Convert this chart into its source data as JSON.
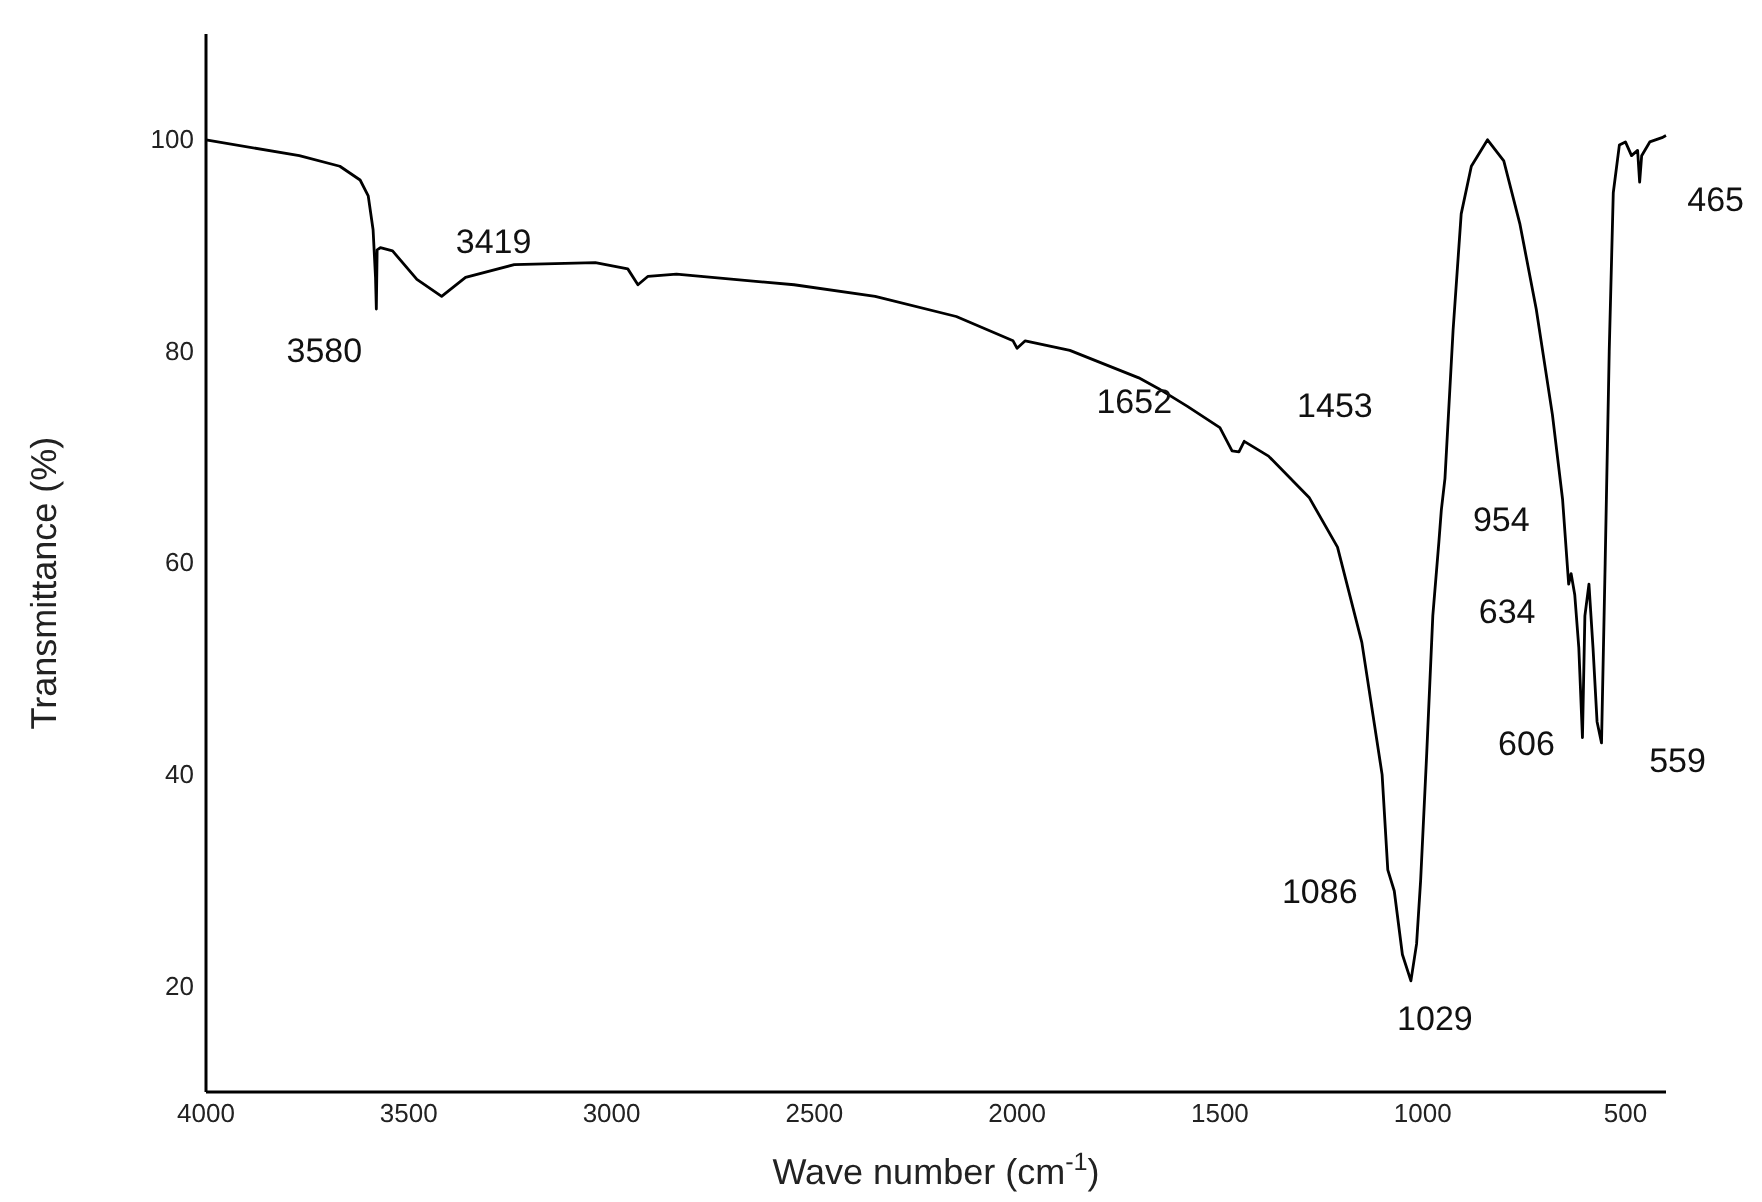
{
  "chart_data": {
    "type": "line",
    "xlabel": "Wave number (cm$^{-1}$)",
    "ylabel": "Transmittance (%)",
    "xlim": [
      4000,
      400
    ],
    "xticks": [
      4000,
      3500,
      3000,
      2500,
      2000,
      1500,
      1000,
      500
    ],
    "ylim": [
      10,
      110
    ],
    "yticks": [
      20,
      40,
      60,
      80,
      100
    ],
    "grid": false,
    "marker": "none",
    "line_style": "solid",
    "series": [
      {
        "color": "#000000",
        "x": [
          4000,
          3770,
          3670,
          3620,
          3600,
          3588,
          3582,
          3580,
          3578,
          3570,
          3540,
          3480,
          3419,
          3360,
          3240,
          3040,
          2960,
          2935,
          2910,
          2840,
          2550,
          2350,
          2150,
          2010,
          2000,
          1980,
          1870,
          1700,
          1652,
          1580,
          1500,
          1470,
          1453,
          1440,
          1380,
          1280,
          1210,
          1150,
          1100,
          1086,
          1070,
          1050,
          1029,
          1015,
          1005,
          990,
          975,
          960,
          954,
          945,
          925,
          905,
          880,
          840,
          800,
          760,
          720,
          680,
          655,
          640,
          634,
          625,
          615,
          606,
          600,
          590,
          580,
          570,
          559,
          550,
          540,
          530,
          515,
          500,
          485,
          470,
          465,
          460,
          440,
          410,
          400
        ],
        "values": [
          100,
          98.5,
          97.5,
          96.2,
          94.7,
          91.5,
          87,
          84,
          89.6,
          89.8,
          89.5,
          86.8,
          85.2,
          87,
          88.2,
          88.4,
          87.8,
          86.3,
          87.1,
          87.3,
          86.3,
          85.2,
          83.3,
          81,
          80.3,
          81,
          80.1,
          77.5,
          76.5,
          74.8,
          72.8,
          70.6,
          70.5,
          71.5,
          70.1,
          66.2,
          61.5,
          52.5,
          40,
          31,
          29,
          23,
          20.5,
          24,
          30,
          42,
          55,
          62,
          65,
          68,
          82,
          93,
          97.5,
          100,
          98,
          92,
          84,
          74,
          66,
          58,
          59,
          57,
          52,
          43.5,
          55,
          58,
          52,
          45,
          43,
          60,
          80,
          95,
          99.5,
          99.8,
          98.5,
          99,
          96,
          98.5,
          99.8,
          100.2,
          100.4
        ]
      }
    ],
    "annotations": [
      {
        "text": "3580",
        "x": 3580,
        "y": 84
      },
      {
        "text": "3419",
        "x": 3419,
        "y": 85.2
      },
      {
        "text": "1652",
        "x": 1652,
        "y": 76.5
      },
      {
        "text": "1453",
        "x": 1453,
        "y": 70.5
      },
      {
        "text": "1086",
        "x": 1086,
        "y": 31
      },
      {
        "text": "1029",
        "x": 1029,
        "y": 20.5
      },
      {
        "text": "954",
        "x": 954,
        "y": 65
      },
      {
        "text": "634",
        "x": 634,
        "y": 59
      },
      {
        "text": "606",
        "x": 606,
        "y": 43.5
      },
      {
        "text": "559",
        "x": 559,
        "y": 43
      },
      {
        "text": "465",
        "x": 465,
        "y": 96
      }
    ]
  }
}
